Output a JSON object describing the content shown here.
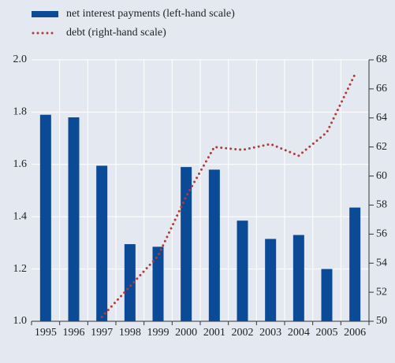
{
  "chart_data": {
    "type": "bar",
    "categories": [
      "1995",
      "1996",
      "1997",
      "1998",
      "1999",
      "2000",
      "2001",
      "2002",
      "2003",
      "2004",
      "2005",
      "2006"
    ],
    "series": [
      {
        "name": "net interest payments (left-hand scale)",
        "color": "#0b4a96",
        "type": "bar",
        "values": [
          1.79,
          1.78,
          1.595,
          1.295,
          1.285,
          1.59,
          1.58,
          1.385,
          1.315,
          1.33,
          1.2,
          1.435
        ]
      },
      {
        "name": "debt (right-hand scale)",
        "color": "#b23b3b",
        "type": "line",
        "axis": "y2",
        "values": [
          null,
          null,
          50.3,
          52.4,
          54.5,
          58.6,
          62.0,
          61.8,
          62.2,
          61.4,
          63.0,
          67.0
        ]
      }
    ],
    "ylim": [
      1.0,
      2.0
    ],
    "yticks": [
      {
        "value": 1.0,
        "label": "1.0"
      },
      1.2,
      1.4,
      1.6,
      1.8,
      {
        "value": 2.0,
        "label": "2.0"
      }
    ],
    "y2lim": [
      50,
      68
    ],
    "y2ticks": [
      50,
      52,
      54,
      56,
      58,
      60,
      62,
      64,
      66,
      68
    ],
    "grid": true
  }
}
